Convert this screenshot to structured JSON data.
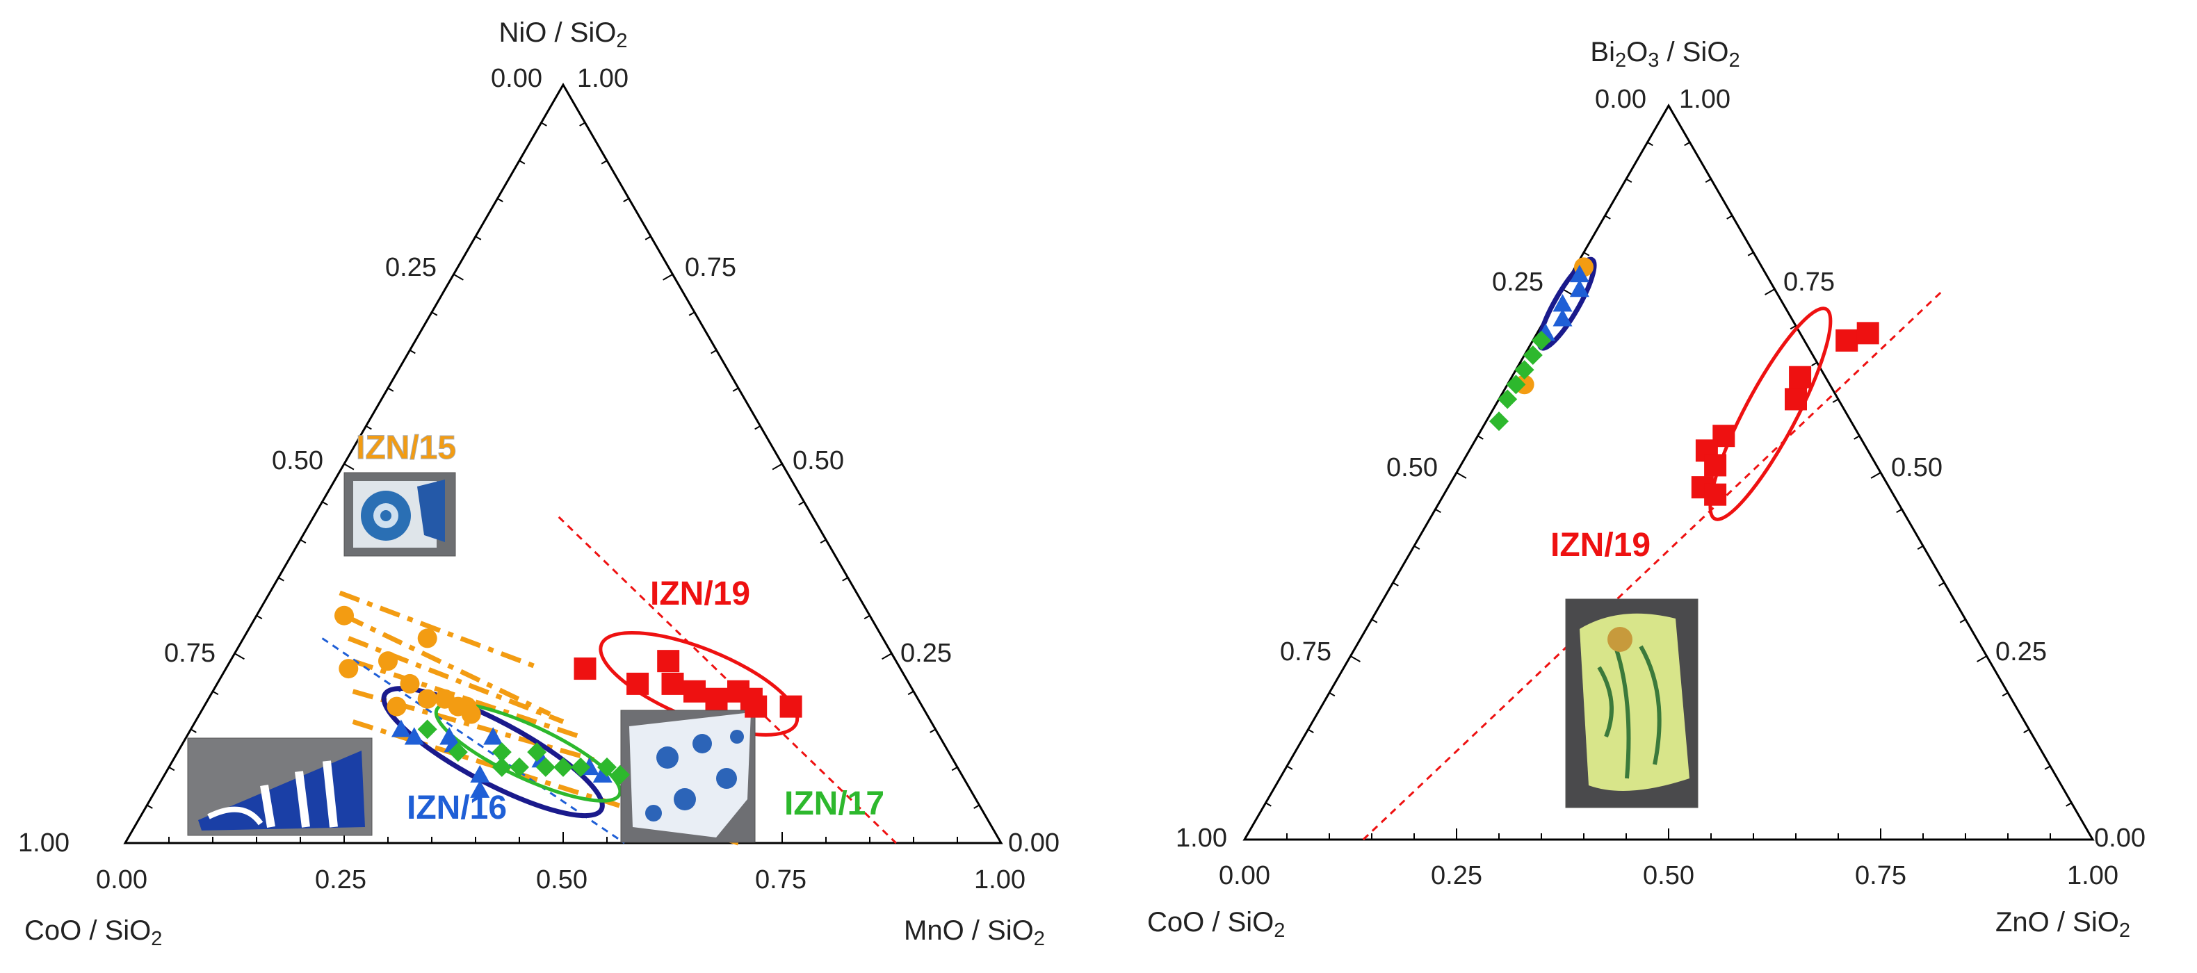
{
  "colors": {
    "IZN/15": "#f39c12",
    "IZN/16": "#1f5fd6",
    "IZN/17": "#2db82d",
    "IZN/19": "#ee1111",
    "ellipse_IZN/16": "#1a1a8c"
  },
  "chart_data": [
    {
      "type": "scatter",
      "subtype": "ternary",
      "axes": {
        "top": "NiO / SiO2",
        "left": "CoO / SiO2",
        "right": "MnO / SiO2"
      },
      "tick_labels": {
        "bottom": [
          "0.00",
          "0.25",
          "0.50",
          "0.75",
          "1.00"
        ],
        "left": [
          "1.00",
          "0.75",
          "0.50",
          "0.25",
          "0.00"
        ],
        "right": [
          "0.00",
          "0.25",
          "0.50",
          "0.75",
          "1.00"
        ]
      },
      "axis_range": [
        0,
        1
      ],
      "group_labels": [
        "IZN/15",
        "IZN/16",
        "IZN/17",
        "IZN/19"
      ],
      "photo_insets": [
        "IZN/15",
        "IZN/16",
        "IZN/19",
        "IZN/17"
      ],
      "series": [
        {
          "name": "IZN/15",
          "marker": "circle",
          "points": [
            {
              "mn": 0.1,
              "ni": 0.3
            },
            {
              "mn": 0.21,
              "ni": 0.27
            },
            {
              "mn": 0.14,
              "ni": 0.23
            },
            {
              "mn": 0.18,
              "ni": 0.24
            },
            {
              "mn": 0.22,
              "ni": 0.21
            },
            {
              "mn": 0.22,
              "ni": 0.18
            },
            {
              "mn": 0.25,
              "ni": 0.19
            },
            {
              "mn": 0.27,
              "ni": 0.19
            },
            {
              "mn": 0.29,
              "ni": 0.18
            },
            {
              "mn": 0.3,
              "ni": 0.18
            },
            {
              "mn": 0.31,
              "ni": 0.17
            }
          ],
          "dashed_lines": [
            [
              {
                "mn": 0.08,
                "ni": 0.33
              },
              {
                "mn": 0.36,
                "ni": 0.23
              }
            ],
            [
              {
                "mn": 0.1,
                "ni": 0.3
              },
              {
                "mn": 0.4,
                "ni": 0.17
              }
            ],
            [
              {
                "mn": 0.12,
                "ni": 0.27
              },
              {
                "mn": 0.42,
                "ni": 0.16
              }
            ],
            [
              {
                "mn": 0.14,
                "ni": 0.24
              },
              {
                "mn": 0.45,
                "ni": 0.14
              }
            ],
            [
              {
                "mn": 0.16,
                "ni": 0.2
              },
              {
                "mn": 0.48,
                "ni": 0.11
              }
            ],
            [
              {
                "mn": 0.18,
                "ni": 0.16
              },
              {
                "mn": 0.7,
                "ni": 0.0
              }
            ]
          ]
        },
        {
          "name": "IZN/16",
          "marker": "triangle",
          "points": [
            {
              "mn": 0.24,
              "ni": 0.15
            },
            {
              "mn": 0.26,
              "ni": 0.14
            },
            {
              "mn": 0.31,
              "ni": 0.13
            },
            {
              "mn": 0.3,
              "ni": 0.14
            },
            {
              "mn": 0.35,
              "ni": 0.14
            },
            {
              "mn": 0.36,
              "ni": 0.09
            },
            {
              "mn": 0.37,
              "ni": 0.07
            },
            {
              "mn": 0.42,
              "ni": 0.11
            },
            {
              "mn": 0.48,
              "ni": 0.1
            },
            {
              "mn": 0.5,
              "ni": 0.09
            }
          ],
          "ellipse": {
            "center": {
              "mn": 0.36,
              "ni": 0.12
            },
            "rx": 0.14,
            "ry": 0.035,
            "rotation": 28
          },
          "dashed_lines": [
            [
              {
                "mn": 0.09,
                "ni": 0.27
              },
              {
                "mn": 0.57,
                "ni": 0.0
              }
            ]
          ]
        },
        {
          "name": "IZN/17",
          "marker": "diamond",
          "points": [
            {
              "mn": 0.27,
              "ni": 0.15
            },
            {
              "mn": 0.32,
              "ni": 0.12
            },
            {
              "mn": 0.37,
              "ni": 0.12
            },
            {
              "mn": 0.38,
              "ni": 0.1
            },
            {
              "mn": 0.4,
              "ni": 0.1
            },
            {
              "mn": 0.41,
              "ni": 0.12
            },
            {
              "mn": 0.43,
              "ni": 0.1
            },
            {
              "mn": 0.45,
              "ni": 0.1
            },
            {
              "mn": 0.47,
              "ni": 0.1
            },
            {
              "mn": 0.5,
              "ni": 0.1
            },
            {
              "mn": 0.52,
              "ni": 0.09
            }
          ],
          "ellipse": {
            "center": {
              "mn": 0.4,
              "ni": 0.12
            },
            "rx": 0.115,
            "ry": 0.03,
            "rotation": 25
          }
        },
        {
          "name": "IZN/19",
          "marker": "square",
          "points": [
            {
              "mn": 0.41,
              "ni": 0.23
            },
            {
              "mn": 0.5,
              "ni": 0.24
            },
            {
              "mn": 0.52,
              "ni": 0.21
            },
            {
              "mn": 0.55,
              "ni": 0.2
            },
            {
              "mn": 0.58,
              "ni": 0.19
            },
            {
              "mn": 0.6,
              "ni": 0.2
            },
            {
              "mn": 0.62,
              "ni": 0.19
            },
            {
              "mn": 0.63,
              "ni": 0.18
            },
            {
              "mn": 0.67,
              "ni": 0.18
            },
            {
              "mn": 0.48,
              "ni": 0.21
            }
          ],
          "ellipse": {
            "center": {
              "mn": 0.55,
              "ni": 0.21
            },
            "rx": 0.12,
            "ry": 0.04,
            "rotation": 22
          },
          "dashed_lines": [
            [
              {
                "mn": 0.28,
                "ni": 0.43
              },
              {
                "mn": 0.88,
                "ni": 0.0
              }
            ]
          ]
        }
      ]
    },
    {
      "type": "scatter",
      "subtype": "ternary",
      "axes": {
        "top": "Bi2O3 / SiO2",
        "left": "CoO / SiO2",
        "right": "ZnO / SiO2"
      },
      "tick_labels": {
        "bottom": [
          "0.00",
          "0.25",
          "0.50",
          "0.75",
          "1.00"
        ],
        "left": [
          "1.00",
          "0.75",
          "0.50",
          "0.25",
          "0.00"
        ],
        "right": [
          "0.00",
          "0.25",
          "0.50",
          "0.75",
          "1.00"
        ]
      },
      "axis_range": [
        0,
        1
      ],
      "group_labels": [
        "IZN/19"
      ],
      "photo_insets": [
        "IZN/19"
      ],
      "series": [
        {
          "name": "IZN/15",
          "marker": "circle",
          "points": [
            {
              "zn": 0.01,
              "bi": 0.78
            },
            {
              "zn": 0.02,
              "bi": 0.62
            }
          ]
        },
        {
          "name": "IZN/16",
          "marker": "triangle",
          "points": [
            {
              "zn": 0.01,
              "bi": 0.77
            },
            {
              "zn": 0.02,
              "bi": 0.75
            },
            {
              "zn": 0.01,
              "bi": 0.73
            },
            {
              "zn": 0.02,
              "bi": 0.71
            },
            {
              "zn": 0.01,
              "bi": 0.69
            }
          ],
          "ellipse": {
            "center": {
              "zn": 0.015,
              "bi": 0.73
            },
            "rx": 0.06,
            "ry": 0.014,
            "rotation": -60
          }
        },
        {
          "name": "IZN/17",
          "marker": "diamond",
          "points": [
            {
              "zn": 0.01,
              "bi": 0.68
            },
            {
              "zn": 0.01,
              "bi": 0.66
            },
            {
              "zn": 0.01,
              "bi": 0.64
            },
            {
              "zn": 0.01,
              "bi": 0.62
            },
            {
              "zn": 0.01,
              "bi": 0.6
            },
            {
              "zn": 0.015,
              "bi": 0.57
            }
          ]
        },
        {
          "name": "IZN/19",
          "marker": "square",
          "points": [
            {
              "zn": 0.29,
              "bi": 0.55
            },
            {
              "zn": 0.28,
              "bi": 0.53
            },
            {
              "zn": 0.3,
              "bi": 0.51
            },
            {
              "zn": 0.3,
              "bi": 0.48
            },
            {
              "zn": 0.32,
              "bi": 0.47
            },
            {
              "zn": 0.34,
              "bi": 0.63
            },
            {
              "zn": 0.37,
              "bi": 0.68
            },
            {
              "zn": 0.39,
              "bi": 0.69
            },
            {
              "zn": 0.35,
              "bi": 0.6
            }
          ],
          "ellipse": {
            "center": {
              "zn": 0.33,
              "bi": 0.58
            },
            "rx": 0.14,
            "ry": 0.03,
            "rotation": -62
          },
          "dashed_lines": [
            [
              {
                "zn": 0.14,
                "bi": 0.0
              },
              {
                "zn": 0.45,
                "bi": 0.75
              }
            ]
          ]
        }
      ]
    }
  ]
}
